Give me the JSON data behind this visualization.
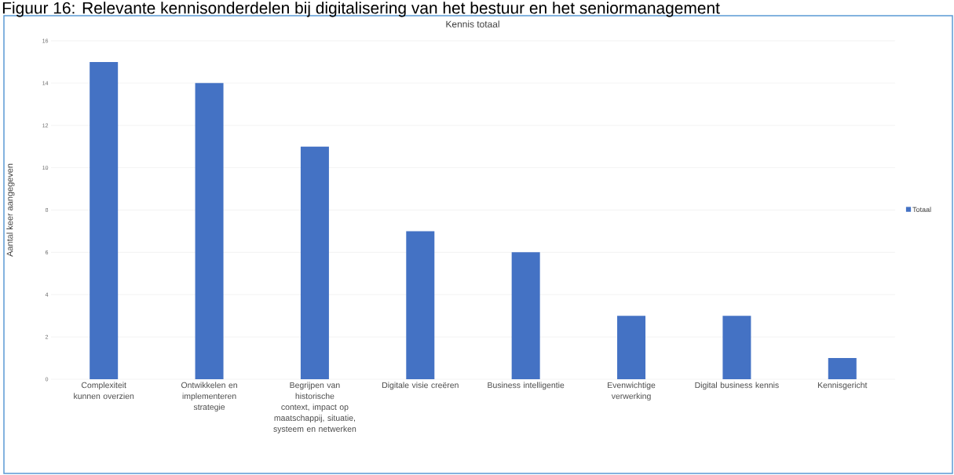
{
  "chart_data": {
    "type": "bar",
    "title": "Figuur 16: Relevante kennisonderdelen bij digitalisering van het bestuur en het seniormanagement",
    "subtitle": "Kennis totaal",
    "ylabel": "Aantal keer aangegeven",
    "categories": [
      "Complexiteit kunnen overzien",
      "Ontwikkelen en implementeren strategie",
      "Begrijpen van historische context, impact op maatschappij, situatie, systeem en netwerken",
      "Digitale visie creëren",
      "Business intelligentie",
      "Evenwichtige verwerking",
      "Digital business kennis",
      "Kennisgericht"
    ],
    "series": [
      {
        "name": "Totaal",
        "color": "#4472c4",
        "values": [
          15,
          14,
          11,
          7,
          6,
          3,
          3,
          1
        ]
      }
    ],
    "ylim": [
      0,
      16
    ],
    "yticks": [
      0,
      2,
      4,
      6,
      8,
      10,
      12,
      14,
      16
    ],
    "grid": "y",
    "legend": "right"
  }
}
